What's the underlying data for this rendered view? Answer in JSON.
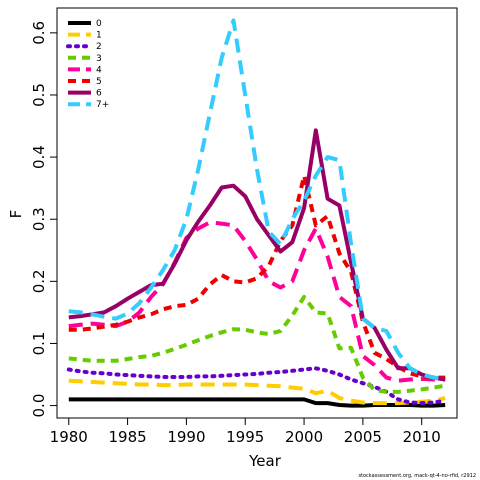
{
  "chart_data": {
    "type": "line",
    "title": "",
    "xlabel": "Year",
    "ylabel": "F",
    "xlim": [
      1979,
      2013
    ],
    "ylim": [
      -0.02,
      0.64
    ],
    "xticks": [
      1980,
      1985,
      1990,
      1995,
      2000,
      2005,
      2010
    ],
    "yticks": [
      0.0,
      0.1,
      0.2,
      0.3,
      0.4,
      0.5,
      0.6
    ],
    "grid": false,
    "legend_position": "top-left",
    "footnote": "stockassessment.org, mack-qt-4-no-rfid, r2912",
    "years": [
      1980,
      1981,
      1982,
      1983,
      1984,
      1985,
      1986,
      1987,
      1988,
      1989,
      1990,
      1991,
      1992,
      1993,
      1994,
      1995,
      1996,
      1997,
      1998,
      1999,
      2000,
      2001,
      2002,
      2003,
      2004,
      2005,
      2006,
      2007,
      2008,
      2009,
      2010,
      2011,
      2012
    ],
    "series": [
      {
        "name": "0",
        "color": "#000000",
        "dash": "solid",
        "values": [
          0.01,
          0.01,
          0.01,
          0.01,
          0.01,
          0.01,
          0.01,
          0.01,
          0.01,
          0.01,
          0.01,
          0.01,
          0.01,
          0.01,
          0.01,
          0.01,
          0.01,
          0.01,
          0.01,
          0.01,
          0.01,
          0.004,
          0.004,
          0.001,
          0.0,
          0.0,
          0.001,
          0.001,
          0.001,
          0.001,
          0.0,
          0.0,
          0.001
        ]
      },
      {
        "name": "1",
        "color": "#FFCC00",
        "dash": "long",
        "values": [
          0.04,
          0.039,
          0.038,
          0.037,
          0.036,
          0.035,
          0.034,
          0.034,
          0.033,
          0.033,
          0.034,
          0.034,
          0.034,
          0.034,
          0.034,
          0.034,
          0.033,
          0.032,
          0.031,
          0.029,
          0.027,
          0.02,
          0.024,
          0.012,
          0.008,
          0.005,
          0.004,
          0.004,
          0.004,
          0.005,
          0.006,
          0.008,
          0.012
        ]
      },
      {
        "name": "2",
        "color": "#6600CC",
        "dash": "dot",
        "values": [
          0.058,
          0.055,
          0.053,
          0.052,
          0.05,
          0.049,
          0.048,
          0.047,
          0.046,
          0.046,
          0.046,
          0.047,
          0.047,
          0.048,
          0.049,
          0.05,
          0.051,
          0.053,
          0.054,
          0.056,
          0.058,
          0.06,
          0.056,
          0.05,
          0.042,
          0.036,
          0.03,
          0.022,
          0.01,
          0.005,
          0.004,
          0.005,
          0.008
        ]
      },
      {
        "name": "3",
        "color": "#66CC00",
        "dash": "dash",
        "values": [
          0.076,
          0.074,
          0.072,
          0.072,
          0.072,
          0.075,
          0.078,
          0.08,
          0.085,
          0.091,
          0.098,
          0.105,
          0.112,
          0.118,
          0.123,
          0.122,
          0.118,
          0.115,
          0.12,
          0.145,
          0.175,
          0.15,
          0.148,
          0.092,
          0.093,
          0.045,
          0.025,
          0.022,
          0.022,
          0.024,
          0.026,
          0.029,
          0.032
        ]
      },
      {
        "name": "4",
        "color": "#FF0099",
        "dash": "long",
        "values": [
          0.128,
          0.13,
          0.132,
          0.13,
          0.128,
          0.135,
          0.15,
          0.175,
          0.195,
          0.23,
          0.27,
          0.285,
          0.295,
          0.293,
          0.29,
          0.265,
          0.235,
          0.2,
          0.19,
          0.2,
          0.25,
          0.285,
          0.24,
          0.175,
          0.16,
          0.08,
          0.065,
          0.045,
          0.04,
          0.042,
          0.043,
          0.042,
          0.042
        ]
      },
      {
        "name": "5",
        "color": "#EE0000",
        "dash": "dash",
        "values": [
          0.122,
          0.122,
          0.124,
          0.127,
          0.13,
          0.135,
          0.142,
          0.147,
          0.155,
          0.16,
          0.162,
          0.172,
          0.195,
          0.21,
          0.2,
          0.198,
          0.205,
          0.225,
          0.265,
          0.29,
          0.37,
          0.29,
          0.305,
          0.245,
          0.215,
          0.135,
          0.085,
          0.075,
          0.062,
          0.052,
          0.047,
          0.045,
          0.045
        ]
      },
      {
        "name": "6",
        "color": "#990066",
        "dash": "solid",
        "values": [
          0.142,
          0.144,
          0.147,
          0.15,
          0.16,
          0.172,
          0.183,
          0.194,
          0.196,
          0.228,
          0.266,
          0.296,
          0.322,
          0.351,
          0.354,
          0.337,
          0.3,
          0.274,
          0.248,
          0.263,
          0.318,
          0.443,
          0.333,
          0.322,
          0.23,
          0.14,
          0.125,
          0.09,
          0.06,
          0.06,
          0.05,
          0.045,
          0.042
        ]
      },
      {
        "name": "7+",
        "color": "#33CCFF",
        "dash": "long",
        "values": [
          0.152,
          0.15,
          0.147,
          0.143,
          0.14,
          0.148,
          0.165,
          0.19,
          0.218,
          0.25,
          0.3,
          0.38,
          0.47,
          0.56,
          0.62,
          0.5,
          0.38,
          0.28,
          0.26,
          0.3,
          0.33,
          0.37,
          0.4,
          0.395,
          0.26,
          0.14,
          0.125,
          0.12,
          0.085,
          0.06,
          0.05,
          0.045,
          0.043
        ]
      }
    ]
  }
}
